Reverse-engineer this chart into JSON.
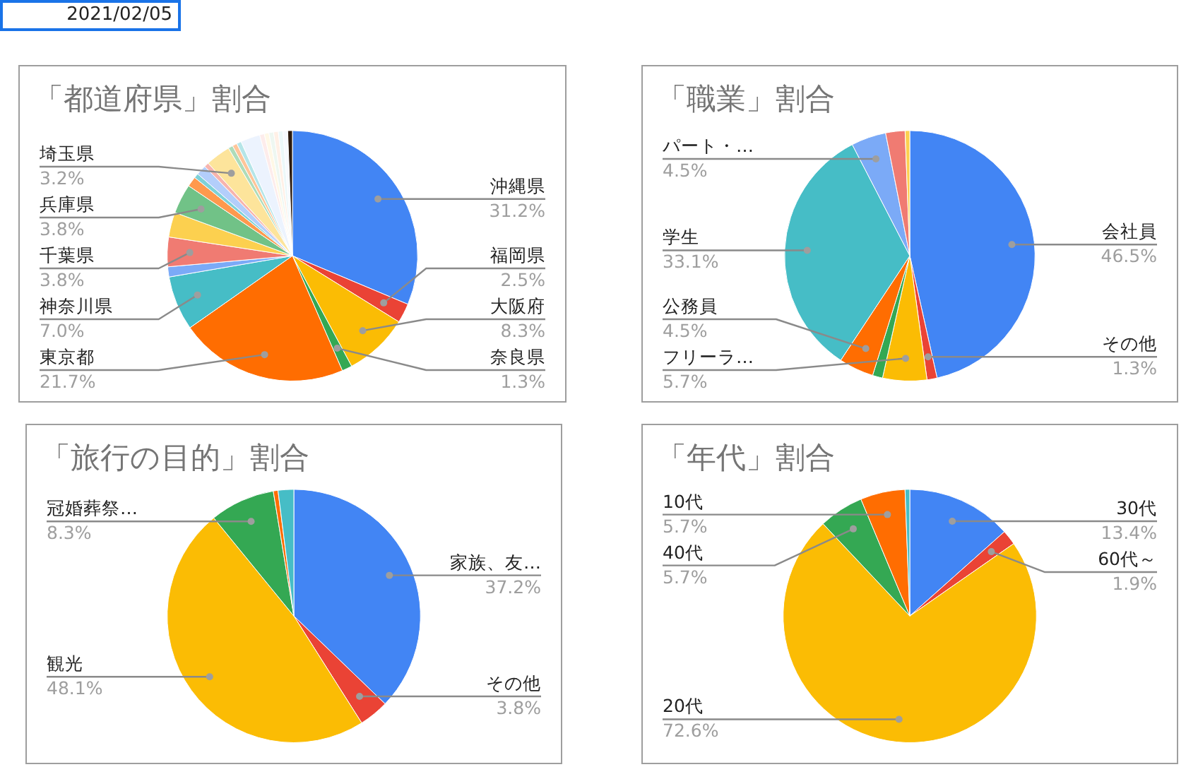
{
  "chart_data": [
    {
      "type": "pie",
      "title": "「都道府県」割合",
      "annotations": [
        "2021/02/05"
      ],
      "legend": false,
      "categories": [
        "沖縄県",
        "福岡県",
        "大阪府",
        "奈良県",
        "東京都",
        "神奈川県",
        null,
        "千葉県",
        null,
        "兵庫県",
        null,
        null,
        null,
        null,
        "埼玉県",
        null,
        null,
        null,
        null,
        null,
        null,
        null,
        null,
        null,
        null,
        null
      ],
      "values": [
        31.2,
        2.5,
        8.3,
        1.3,
        21.7,
        7.0,
        1.3,
        3.8,
        3.2,
        3.8,
        1.3,
        0.6,
        1.3,
        0.6,
        3.2,
        0.6,
        0.6,
        0.6,
        2.5,
        0.6,
        0.6,
        0.6,
        0.6,
        0.6,
        0.6,
        0.6
      ],
      "value_labels": [
        "31.2%",
        "2.5%",
        "8.3%",
        "1.3%",
        "21.7%",
        "7.0%",
        null,
        "3.8%",
        null,
        "3.8%",
        null,
        null,
        null,
        null,
        "3.2%",
        null,
        null,
        null,
        null,
        null,
        null,
        null,
        null,
        null,
        null,
        null
      ],
      "colors": [
        "#4285f4",
        "#ea4335",
        "#fbbc04",
        "#34a853",
        "#ff6d01",
        "#46bdc6",
        "#7baaf7",
        "#f07b72",
        "#fcd04f",
        "#71c287",
        "#ff994d",
        "#7ed1d7",
        "#b3cefb",
        "#f7b4ae",
        "#fde49b",
        "#aedcba",
        "#ffc599",
        "#b5e5e8",
        "#ecf3fe",
        "#fdeceb",
        "#fff8e6",
        "#eef7f1",
        "#fff0e6",
        "#ecf8f9",
        "#f6f9fe",
        "#2b1a0e"
      ]
    },
    {
      "type": "pie",
      "title": "「職業」割合",
      "legend": false,
      "categories": [
        "会社員",
        "その他",
        "フリーラ…",
        null,
        "公務員",
        "学生",
        "パート・…",
        null,
        null
      ],
      "values": [
        46.5,
        1.3,
        5.7,
        1.3,
        4.5,
        33.1,
        4.5,
        2.5,
        0.6
      ],
      "value_labels": [
        "46.5%",
        "1.3%",
        "5.7%",
        null,
        "4.5%",
        "33.1%",
        "4.5%",
        null,
        null
      ],
      "colors": [
        "#4285f4",
        "#ea4335",
        "#fbbc04",
        "#34a853",
        "#ff6d01",
        "#46bdc6",
        "#7baaf7",
        "#f07b72",
        "#fcd04f"
      ]
    },
    {
      "type": "pie",
      "title": "「旅行の目的」割合",
      "legend": false,
      "categories": [
        "家族、友…",
        "その他",
        "観光",
        "冠婚葬祭…",
        null,
        null
      ],
      "values": [
        37.2,
        3.8,
        48.1,
        8.3,
        0.6,
        2.0
      ],
      "value_labels": [
        "37.2%",
        "3.8%",
        "48.1%",
        "8.3%",
        null,
        null
      ],
      "colors": [
        "#4285f4",
        "#ea4335",
        "#fbbc04",
        "#34a853",
        "#ff6d01",
        "#46bdc6"
      ]
    },
    {
      "type": "pie",
      "title": "「年代」割合",
      "legend": false,
      "categories": [
        "30代",
        "60代～",
        "20代",
        "40代",
        "10代",
        null
      ],
      "values": [
        13.4,
        1.9,
        72.6,
        5.7,
        5.7,
        0.6
      ],
      "value_labels": [
        "13.4%",
        "1.9%",
        "72.6%",
        "5.7%",
        "5.7%",
        null
      ],
      "colors": [
        "#4285f4",
        "#ea4335",
        "#fbbc04",
        "#34a853",
        "#ff6d01",
        "#46bdc6"
      ]
    }
  ]
}
